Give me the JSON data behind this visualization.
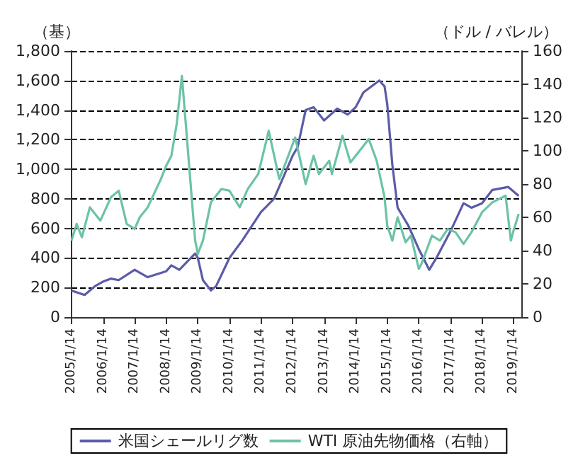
{
  "chart_data": {
    "type": "line",
    "ylabel": "（基）",
    "y2label": "（ドル / バレル）",
    "x": [
      "2005-01-14",
      "2005-06-14",
      "2005-10-14",
      "2006-01-14",
      "2006-04-14",
      "2006-07-14",
      "2007-01-14",
      "2007-06-14",
      "2008-01-14",
      "2008-03-14",
      "2008-06-14",
      "2008-12-14",
      "2009-01-14",
      "2009-03-14",
      "2009-06-14",
      "2009-08-14",
      "2010-01-14",
      "2010-06-14",
      "2011-01-14",
      "2011-06-14",
      "2012-01-14",
      "2012-03-14",
      "2012-06-14",
      "2012-09-14",
      "2013-01-14",
      "2013-06-14",
      "2013-10-14",
      "2014-01-14",
      "2014-04-14",
      "2014-10-14",
      "2014-12-14",
      "2015-01-14",
      "2015-03-14",
      "2015-05-14",
      "2015-09-14",
      "2016-01-14",
      "2016-05-14",
      "2016-08-14",
      "2017-01-14",
      "2017-06-14",
      "2017-09-14",
      "2018-01-14",
      "2018-05-14",
      "2018-11-14",
      "2019-01-14",
      "2019-03-14"
    ],
    "series": [
      {
        "name": "米国シェールリグ数",
        "color": "#5b5ba8",
        "values": [
          180,
          150,
          210,
          240,
          260,
          250,
          320,
          270,
          310,
          350,
          320,
          430,
          400,
          250,
          180,
          210,
          400,
          520,
          710,
          800,
          1090,
          1150,
          1400,
          1420,
          1330,
          1410,
          1370,
          1420,
          1520,
          1600,
          1560,
          1440,
          1030,
          740,
          620,
          460,
          320,
          410,
          580,
          770,
          740,
          770,
          860,
          880,
          850,
          820
        ]
      },
      {
        "name": "WTI 原油先物価格（右軸）",
        "color": "#6cc3a6",
        "axis": "y2",
        "x": [
          "2005-01-14",
          "2005-03-14",
          "2005-05-14",
          "2005-08-14",
          "2005-12-14",
          "2006-04-14",
          "2006-07-14",
          "2006-10-14",
          "2007-01-14",
          "2007-03-14",
          "2007-06-14",
          "2007-11-14",
          "2008-01-14",
          "2008-03-14",
          "2008-05-14",
          "2008-07-14",
          "2008-09-14",
          "2008-12-14",
          "2009-01-14",
          "2009-03-14",
          "2009-06-14",
          "2009-10-14",
          "2010-01-14",
          "2010-05-14",
          "2010-08-14",
          "2010-12-14",
          "2011-04-14",
          "2011-08-14",
          "2011-10-14",
          "2012-02-14",
          "2012-06-14",
          "2012-09-14",
          "2012-11-14",
          "2013-03-14",
          "2013-04-14",
          "2013-08-14",
          "2013-11-14",
          "2014-01-14",
          "2014-06-14",
          "2014-09-14",
          "2014-12-14",
          "2015-01-14",
          "2015-03-14",
          "2015-05-14",
          "2015-08-14",
          "2015-10-14",
          "2016-01-14",
          "2016-02-14",
          "2016-06-14",
          "2016-09-14",
          "2016-12-14",
          "2017-03-14",
          "2017-06-14",
          "2017-09-14",
          "2018-01-14",
          "2018-05-14",
          "2018-10-14",
          "2018-12-14",
          "2019-01-14",
          "2019-03-14"
        ],
        "values": [
          46,
          56,
          48,
          66,
          58,
          72,
          76,
          56,
          53,
          60,
          66,
          83,
          91,
          97,
          116,
          145,
          105,
          46,
          38,
          46,
          69,
          77,
          76,
          66,
          77,
          86,
          112,
          83,
          91,
          108,
          80,
          97,
          86,
          94,
          86,
          109,
          93,
          97,
          107,
          94,
          72,
          55,
          46,
          60,
          45,
          49,
          29,
          32,
          49,
          46,
          53,
          51,
          44,
          51,
          63,
          69,
          73,
          46,
          52,
          62
        ]
      }
    ],
    "xlim": [
      "2005-01-14",
      "2019-04-14"
    ],
    "xticks": [
      {
        "value": "2005-01-14",
        "label": "2005/1/14"
      },
      {
        "value": "2006-01-14",
        "label": "2006/1/14"
      },
      {
        "value": "2007-01-14",
        "label": "2007/1/14"
      },
      {
        "value": "2008-01-14",
        "label": "2008/1/14"
      },
      {
        "value": "2009-01-14",
        "label": "2009/1/14"
      },
      {
        "value": "2010-01-14",
        "label": "2010/1/14"
      },
      {
        "value": "2011-01-14",
        "label": "2011/1/14"
      },
      {
        "value": "2012-01-14",
        "label": "2012/1/14"
      },
      {
        "value": "2013-01-14",
        "label": "2013/1/14"
      },
      {
        "value": "2014-01-14",
        "label": "2014/1/14"
      },
      {
        "value": "2015-01-14",
        "label": "2015/1/14"
      },
      {
        "value": "2016-01-14",
        "label": "2016/1/14"
      },
      {
        "value": "2017-01-14",
        "label": "2017/1/14"
      },
      {
        "value": "2018-01-14",
        "label": "2018/1/14"
      },
      {
        "value": "2019-01-14",
        "label": "2019/1/14"
      }
    ],
    "ylim": [
      0,
      1800
    ],
    "yticks": [
      {
        "value": 0,
        "label": "0"
      },
      {
        "value": 200,
        "label": "200"
      },
      {
        "value": 400,
        "label": "400"
      },
      {
        "value": 600,
        "label": "600"
      },
      {
        "value": 800,
        "label": "800"
      },
      {
        "value": 1000,
        "label": "1,000"
      },
      {
        "value": 1200,
        "label": "1,200"
      },
      {
        "value": 1400,
        "label": "1,400"
      },
      {
        "value": 1600,
        "label": "1,600"
      },
      {
        "value": 1800,
        "label": "1,800"
      }
    ],
    "y2lim": [
      0,
      160
    ],
    "y2ticks": [
      0,
      20,
      40,
      60,
      80,
      100,
      120,
      140,
      160
    ],
    "grid": "y",
    "legend": "bottom",
    "marker": "none",
    "line_style": "solid"
  }
}
